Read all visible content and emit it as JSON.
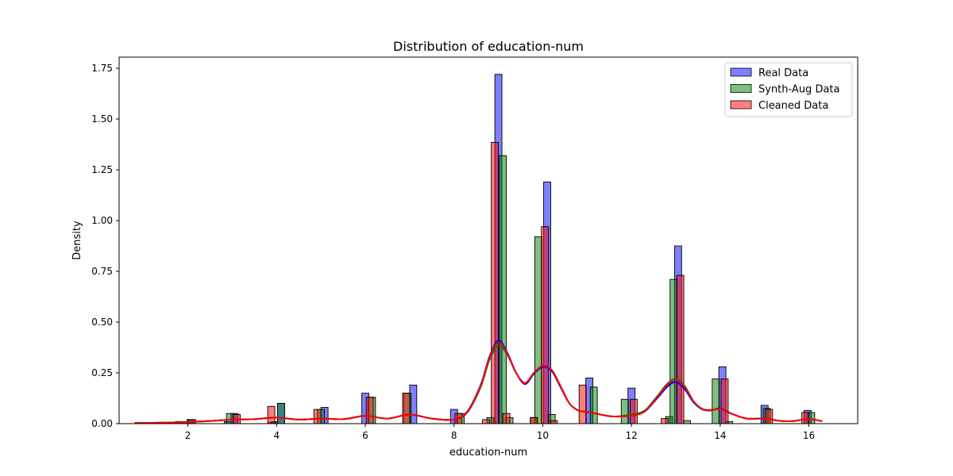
{
  "chart_data": {
    "type": "bar",
    "title": "Distribution of education-num",
    "xlabel": "education-num",
    "ylabel": "Density",
    "xlim": [
      0.45,
      17.1
    ],
    "ylim": [
      0,
      1.805
    ],
    "xticks": [
      2,
      4,
      6,
      8,
      10,
      12,
      14,
      16
    ],
    "yticks": [
      0.0,
      0.25,
      0.5,
      0.75,
      1.0,
      1.25,
      1.5,
      1.75
    ],
    "ytick_labels": [
      "0.00",
      "0.25",
      "0.50",
      "0.75",
      "1.00",
      "1.25",
      "1.50",
      "1.75"
    ],
    "grid": false,
    "legend_position": "top-right",
    "series": [
      {
        "name": "Real Data",
        "color": "#0000ff",
        "bin_width": 0.16,
        "bars": [
          {
            "x": 1.9,
            "y": 0.01
          },
          {
            "x": 2.06,
            "y": 0.02
          },
          {
            "x": 2.9,
            "y": 0.01
          },
          {
            "x": 3.05,
            "y": 0.05
          },
          {
            "x": 3.95,
            "y": 0.01
          },
          {
            "x": 4.1,
            "y": 0.1
          },
          {
            "x": 5.08,
            "y": 0.08
          },
          {
            "x": 6.0,
            "y": 0.15
          },
          {
            "x": 7.08,
            "y": 0.19
          },
          {
            "x": 8.0,
            "y": 0.07
          },
          {
            "x": 9.0,
            "y": 1.72
          },
          {
            "x": 10.1,
            "y": 1.19
          },
          {
            "x": 11.05,
            "y": 0.225
          },
          {
            "x": 12.0,
            "y": 0.175
          },
          {
            "x": 13.05,
            "y": 0.875
          },
          {
            "x": 14.05,
            "y": 0.28
          },
          {
            "x": 15.0,
            "y": 0.09
          },
          {
            "x": 15.97,
            "y": 0.065
          }
        ]
      },
      {
        "name": "Synth-Aug Data",
        "color": "#008000",
        "bin_width": 0.16,
        "bars": [
          {
            "x": 0.9,
            "y": 0.005
          },
          {
            "x": 1.8,
            "y": 0.01
          },
          {
            "x": 2.06,
            "y": 0.02
          },
          {
            "x": 2.95,
            "y": 0.05
          },
          {
            "x": 3.9,
            "y": 0.005
          },
          {
            "x": 4.1,
            "y": 0.1
          },
          {
            "x": 5.0,
            "y": 0.07
          },
          {
            "x": 6.15,
            "y": 0.13
          },
          {
            "x": 6.95,
            "y": 0.15
          },
          {
            "x": 8.15,
            "y": 0.05
          },
          {
            "x": 8.82,
            "y": 0.03
          },
          {
            "x": 9.1,
            "y": 1.32
          },
          {
            "x": 9.25,
            "y": 0.03
          },
          {
            "x": 9.8,
            "y": 0.03
          },
          {
            "x": 9.9,
            "y": 0.92
          },
          {
            "x": 10.2,
            "y": 0.045
          },
          {
            "x": 11.15,
            "y": 0.18
          },
          {
            "x": 11.85,
            "y": 0.12
          },
          {
            "x": 12.85,
            "y": 0.035
          },
          {
            "x": 12.95,
            "y": 0.71
          },
          {
            "x": 13.25,
            "y": 0.015
          },
          {
            "x": 13.9,
            "y": 0.22
          },
          {
            "x": 14.2,
            "y": 0.01
          },
          {
            "x": 15.05,
            "y": 0.075
          },
          {
            "x": 16.05,
            "y": 0.055
          }
        ]
      },
      {
        "name": "Cleaned Data",
        "color": "#ff0000",
        "bin_width": 0.16,
        "bars": [
          {
            "x": 2.1,
            "y": 0.02
          },
          {
            "x": 3.1,
            "y": 0.045
          },
          {
            "x": 3.88,
            "y": 0.085
          },
          {
            "x": 4.92,
            "y": 0.07
          },
          {
            "x": 6.1,
            "y": 0.13
          },
          {
            "x": 6.92,
            "y": 0.15
          },
          {
            "x": 8.1,
            "y": 0.05
          },
          {
            "x": 8.72,
            "y": 0.02
          },
          {
            "x": 8.92,
            "y": 1.385
          },
          {
            "x": 9.18,
            "y": 0.05
          },
          {
            "x": 9.8,
            "y": 0.03
          },
          {
            "x": 10.05,
            "y": 0.97
          },
          {
            "x": 10.25,
            "y": 0.015
          },
          {
            "x": 10.9,
            "y": 0.19
          },
          {
            "x": 12.05,
            "y": 0.12
          },
          {
            "x": 12.75,
            "y": 0.025
          },
          {
            "x": 13.1,
            "y": 0.73
          },
          {
            "x": 14.1,
            "y": 0.22
          },
          {
            "x": 15.1,
            "y": 0.07
          },
          {
            "x": 15.92,
            "y": 0.055
          }
        ]
      }
    ],
    "kde": [
      {
        "name": "Real Data",
        "color": "#0000ff",
        "x": [
          0.8,
          1.5,
          2.0,
          2.5,
          3.0,
          3.5,
          4.0,
          4.5,
          5.0,
          5.5,
          6.0,
          6.5,
          7.0,
          7.5,
          8.0,
          8.3,
          8.6,
          8.8,
          9.0,
          9.2,
          9.4,
          9.6,
          9.8,
          10.0,
          10.2,
          10.4,
          10.6,
          10.8,
          11.0,
          11.3,
          11.6,
          12.0,
          12.3,
          12.6,
          12.8,
          13.0,
          13.2,
          13.4,
          13.6,
          13.8,
          14.0,
          14.3,
          14.6,
          15.0,
          15.3,
          15.6,
          16.0,
          16.3
        ],
        "y": [
          0.003,
          0.005,
          0.008,
          0.013,
          0.02,
          0.022,
          0.03,
          0.02,
          0.025,
          0.022,
          0.038,
          0.025,
          0.045,
          0.025,
          0.02,
          0.06,
          0.19,
          0.33,
          0.41,
          0.35,
          0.25,
          0.195,
          0.245,
          0.28,
          0.26,
          0.18,
          0.1,
          0.065,
          0.058,
          0.045,
          0.035,
          0.04,
          0.06,
          0.13,
          0.18,
          0.205,
          0.17,
          0.105,
          0.07,
          0.065,
          0.075,
          0.045,
          0.025,
          0.025,
          0.015,
          0.012,
          0.022,
          0.012
        ]
      },
      {
        "name": "Synth-Aug Data",
        "color": "#008000",
        "x": [
          0.8,
          1.5,
          2.0,
          2.5,
          3.0,
          3.5,
          4.0,
          4.5,
          5.0,
          5.5,
          6.0,
          6.5,
          7.0,
          7.5,
          8.0,
          8.3,
          8.6,
          8.8,
          9.0,
          9.2,
          9.4,
          9.6,
          9.8,
          10.0,
          10.2,
          10.4,
          10.6,
          10.8,
          11.0,
          11.3,
          11.6,
          12.0,
          12.3,
          12.6,
          12.8,
          13.0,
          13.2,
          13.4,
          13.6,
          13.8,
          14.0,
          14.3,
          14.6,
          15.0,
          15.3,
          15.6,
          16.0,
          16.3
        ],
        "y": [
          0.003,
          0.005,
          0.008,
          0.013,
          0.02,
          0.022,
          0.03,
          0.02,
          0.025,
          0.022,
          0.038,
          0.025,
          0.045,
          0.025,
          0.02,
          0.055,
          0.18,
          0.315,
          0.385,
          0.34,
          0.25,
          0.2,
          0.25,
          0.285,
          0.265,
          0.185,
          0.1,
          0.065,
          0.058,
          0.045,
          0.035,
          0.045,
          0.065,
          0.14,
          0.195,
          0.22,
          0.185,
          0.11,
          0.072,
          0.068,
          0.07,
          0.045,
          0.025,
          0.025,
          0.015,
          0.012,
          0.022,
          0.012
        ]
      },
      {
        "name": "Cleaned Data",
        "color": "#ff0000",
        "x": [
          0.8,
          1.5,
          2.0,
          2.5,
          3.0,
          3.5,
          4.0,
          4.5,
          5.0,
          5.5,
          6.0,
          6.5,
          7.0,
          7.5,
          8.0,
          8.3,
          8.6,
          8.8,
          9.0,
          9.2,
          9.4,
          9.6,
          9.8,
          10.0,
          10.2,
          10.4,
          10.6,
          10.8,
          11.0,
          11.3,
          11.6,
          12.0,
          12.3,
          12.6,
          12.8,
          13.0,
          13.2,
          13.4,
          13.6,
          13.8,
          14.0,
          14.3,
          14.6,
          15.0,
          15.3,
          15.6,
          16.0,
          16.3
        ],
        "y": [
          0.003,
          0.005,
          0.008,
          0.013,
          0.02,
          0.022,
          0.03,
          0.02,
          0.025,
          0.022,
          0.038,
          0.025,
          0.045,
          0.025,
          0.02,
          0.058,
          0.185,
          0.325,
          0.4,
          0.345,
          0.25,
          0.2,
          0.25,
          0.285,
          0.265,
          0.185,
          0.1,
          0.065,
          0.058,
          0.045,
          0.035,
          0.04,
          0.06,
          0.135,
          0.19,
          0.215,
          0.18,
          0.11,
          0.072,
          0.066,
          0.072,
          0.045,
          0.025,
          0.025,
          0.015,
          0.012,
          0.022,
          0.012
        ]
      }
    ]
  }
}
